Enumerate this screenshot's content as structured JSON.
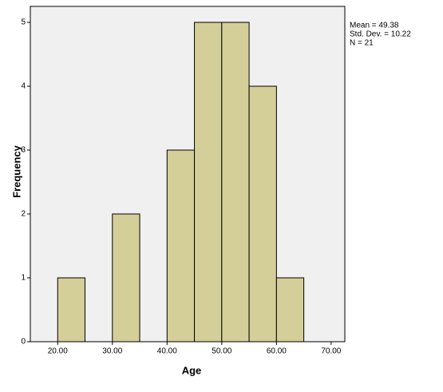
{
  "chart_data": {
    "type": "histogram",
    "x_label": "Age",
    "y_label": "Frequency",
    "annotations": [
      "Mean = 49.38",
      "Std. Dev. = 10.22",
      "N = 21"
    ],
    "bins": [
      20,
      25,
      30,
      35,
      40,
      45,
      50,
      55,
      60,
      65
    ],
    "values": [
      1,
      0,
      2,
      0,
      3,
      5,
      5,
      4,
      1
    ],
    "color": "#d4cf99",
    "xlim": [
      15,
      72.5
    ],
    "ylim": [
      0,
      5.25
    ],
    "xticks": [
      {
        "value": 20,
        "label": "20.00"
      },
      {
        "value": 30,
        "label": "30.00"
      },
      {
        "value": 40,
        "label": "40.00"
      },
      {
        "value": 50,
        "label": "50.00"
      },
      {
        "value": 60,
        "label": "60.00"
      },
      {
        "value": 70,
        "label": "70.00"
      }
    ],
    "yticks": [
      0,
      1,
      2,
      3,
      4,
      5
    ],
    "grid": false
  }
}
